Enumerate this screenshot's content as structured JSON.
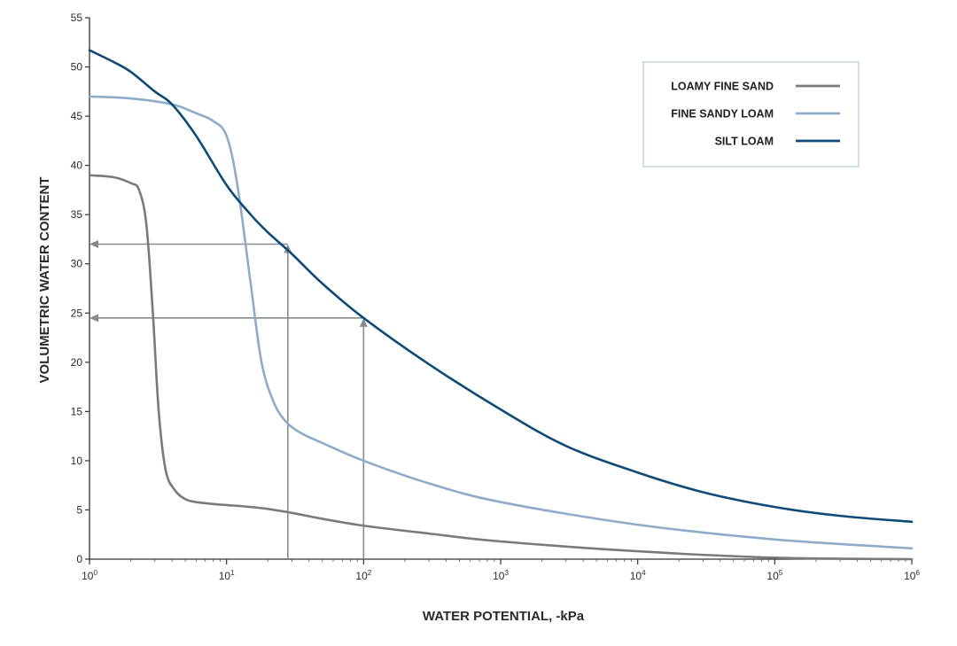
{
  "chart_data": {
    "type": "line",
    "title": "",
    "xlabel": "WATER POTENTIAL, -kPa",
    "ylabel": "VOLUMETRIC WATER CONTENT",
    "x_scale": "log",
    "xlim": [
      1,
      1000000
    ],
    "ylim": [
      0,
      55
    ],
    "x_ticks": [
      1,
      10,
      100,
      1000,
      10000,
      100000,
      1000000
    ],
    "x_tick_labels": [
      {
        "base": "10",
        "exp": "0"
      },
      {
        "base": "10",
        "exp": "1"
      },
      {
        "base": "10",
        "exp": "2"
      },
      {
        "base": "10",
        "exp": "3"
      },
      {
        "base": "10",
        "exp": "4"
      },
      {
        "base": "10",
        "exp": "5"
      },
      {
        "base": "10",
        "exp": "6"
      }
    ],
    "y_ticks": [
      0,
      5,
      10,
      15,
      20,
      25,
      30,
      35,
      40,
      45,
      50,
      55
    ],
    "y_tick_labels": [
      "0",
      "5",
      "10",
      "15",
      "20",
      "25",
      "30",
      "35",
      "40",
      "45",
      "50",
      "55"
    ],
    "grid": false,
    "legend_position": "top-right",
    "series": [
      {
        "name": "LOAMY FINE SAND",
        "color": "#7a7a7a",
        "points": [
          [
            1,
            39
          ],
          [
            1.5,
            38.8
          ],
          [
            2,
            38.2
          ],
          [
            2.3,
            37.5
          ],
          [
            2.6,
            34
          ],
          [
            2.9,
            25
          ],
          [
            3.2,
            15
          ],
          [
            3.6,
            9
          ],
          [
            4.2,
            7
          ],
          [
            5,
            6.1
          ],
          [
            6,
            5.8
          ],
          [
            8,
            5.6
          ],
          [
            10,
            5.5
          ],
          [
            15,
            5.3
          ],
          [
            20,
            5.1
          ],
          [
            30,
            4.7
          ],
          [
            50,
            4.1
          ],
          [
            100,
            3.4
          ],
          [
            300,
            2.6
          ],
          [
            1000,
            1.8
          ],
          [
            10000,
            0.8
          ],
          [
            100000,
            0.15
          ],
          [
            1000000,
            0
          ]
        ]
      },
      {
        "name": "FINE SANDY LOAM",
        "color": "#8fabc8",
        "points": [
          [
            1,
            47
          ],
          [
            2,
            46.8
          ],
          [
            4,
            46.2
          ],
          [
            6,
            45.3
          ],
          [
            8,
            44.5
          ],
          [
            10,
            43
          ],
          [
            12,
            38
          ],
          [
            15,
            28
          ],
          [
            18,
            20
          ],
          [
            22,
            16
          ],
          [
            27,
            14
          ],
          [
            35,
            12.8
          ],
          [
            50,
            11.8
          ],
          [
            100,
            10
          ],
          [
            300,
            7.7
          ],
          [
            1000,
            5.8
          ],
          [
            10000,
            3.5
          ],
          [
            100000,
            2
          ],
          [
            1000000,
            1.1
          ]
        ]
      },
      {
        "name": "SILT LOAM",
        "color": "#0d4a78",
        "points": [
          [
            1,
            51.7
          ],
          [
            1.5,
            50.5
          ],
          [
            2,
            49.5
          ],
          [
            3,
            47.5
          ],
          [
            4,
            46.2
          ],
          [
            6,
            43
          ],
          [
            10,
            38
          ],
          [
            15,
            35
          ],
          [
            20,
            33.2
          ],
          [
            30,
            31
          ],
          [
            50,
            28
          ],
          [
            100,
            24.5
          ],
          [
            300,
            19.8
          ],
          [
            1000,
            15.2
          ],
          [
            3000,
            11.5
          ],
          [
            10000,
            8.8
          ],
          [
            30000,
            6.8
          ],
          [
            100000,
            5.3
          ],
          [
            300000,
            4.4
          ],
          [
            1000000,
            3.8
          ]
        ]
      }
    ],
    "annotations": [
      {
        "type": "vertical-arrow",
        "x": 28,
        "y_from": 0,
        "y_to": 32
      },
      {
        "type": "horizontal-arrow",
        "y": 32,
        "x_from": 28,
        "x_to": 1
      },
      {
        "type": "vertical-arrow",
        "x": 100,
        "y_from": 0,
        "y_to": 24.5
      },
      {
        "type": "horizontal-arrow",
        "y": 24.5,
        "x_from": 100,
        "x_to": 1
      }
    ],
    "annotation_color": "#8a8a8a",
    "legend_border_color": "#b7cfd6"
  }
}
